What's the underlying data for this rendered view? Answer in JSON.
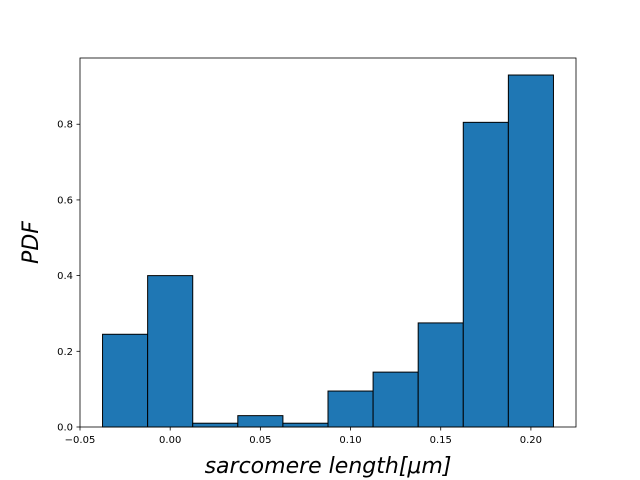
{
  "chart_data": {
    "type": "bar",
    "subtype": "histogram",
    "title": "",
    "xlabel": "sarcomere length[μm]",
    "ylabel": "PDF",
    "xlim": [
      -0.05,
      0.225
    ],
    "ylim": [
      0,
      0.975
    ],
    "bar_color": "#1f77b4",
    "edge_color": "#000000",
    "bin_edges": [
      -0.0375,
      -0.0125,
      0.0125,
      0.0375,
      0.0625,
      0.0875,
      0.1125,
      0.1375,
      0.1625,
      0.1875,
      0.2125
    ],
    "values": [
      0.245,
      0.4,
      0.01,
      0.03,
      0.01,
      0.095,
      0.145,
      0.275,
      0.805,
      0.93
    ],
    "x_ticks": [
      -0.05,
      0.0,
      0.05,
      0.1,
      0.15,
      0.2
    ],
    "x_tick_labels": [
      "−0.05",
      "0.00",
      "0.05",
      "0.10",
      "0.15",
      "0.20"
    ],
    "y_ticks": [
      0.0,
      0.2,
      0.4,
      0.6,
      0.8
    ],
    "y_tick_labels": [
      "0.0",
      "0.2",
      "0.4",
      "0.6",
      "0.8"
    ],
    "grid": false,
    "legend": false
  }
}
